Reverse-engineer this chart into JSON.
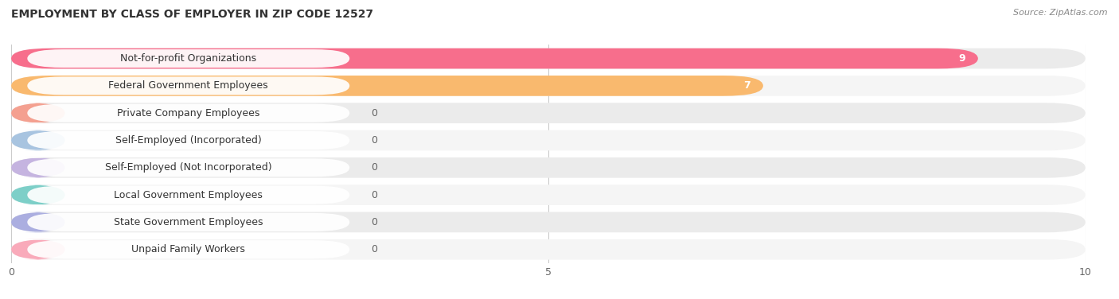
{
  "title": "EMPLOYMENT BY CLASS OF EMPLOYER IN ZIP CODE 12527",
  "source": "Source: ZipAtlas.com",
  "categories": [
    "Not-for-profit Organizations",
    "Federal Government Employees",
    "Private Company Employees",
    "Self-Employed (Incorporated)",
    "Self-Employed (Not Incorporated)",
    "Local Government Employees",
    "State Government Employees",
    "Unpaid Family Workers"
  ],
  "values": [
    9,
    7,
    0,
    0,
    0,
    0,
    0,
    0
  ],
  "bar_colors": [
    "#F76E8C",
    "#F9B96E",
    "#F4A090",
    "#A8C4E0",
    "#C5B4E0",
    "#7DCFC8",
    "#ABAEE0",
    "#F9AABA"
  ],
  "row_bg_color": "#EBEBEB",
  "row_bg_color2": "#F5F5F5",
  "xlim_max": 10,
  "xticks": [
    0,
    5,
    10
  ],
  "title_fontsize": 10,
  "source_fontsize": 8,
  "label_fontsize": 9,
  "value_fontsize": 9,
  "background_color": "#FFFFFF"
}
